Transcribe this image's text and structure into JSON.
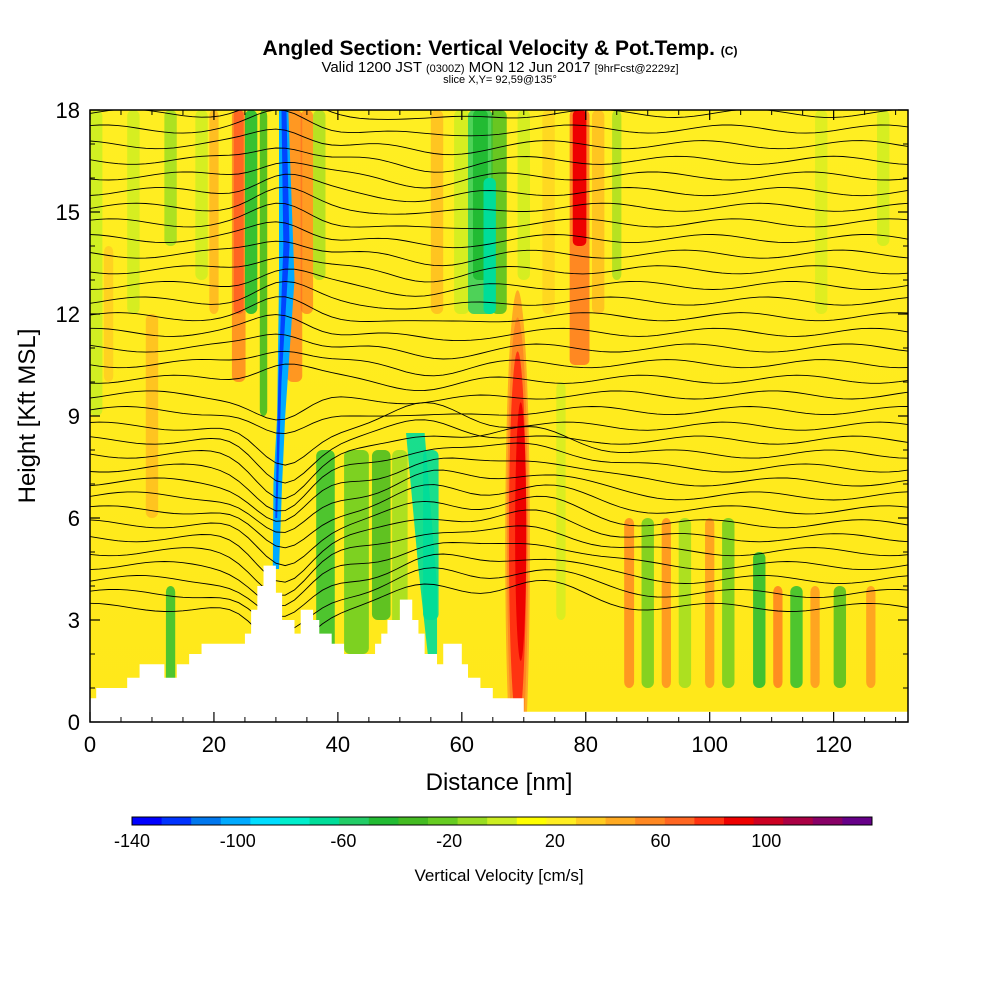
{
  "title_main": "Angled Section: Vertical Velocity & Pot.Temp.",
  "title_mark": "(C)",
  "subtitle_valid": "Valid 1200 JST",
  "subtitle_z": "(0300Z)",
  "subtitle_date": "MON 12 Jun 2017",
  "subtitle_fcst": "[9hrFcst@2229z]",
  "slice_label": "slice X,Y= 92,59@135°",
  "chart_data": {
    "type": "heatmap",
    "xlabel": "Distance [nm]",
    "ylabel": "Height [Kft MSL]",
    "xlim": [
      0,
      132
    ],
    "ylim": [
      0,
      18
    ],
    "x_ticks": [
      "0",
      "20",
      "40",
      "60",
      "80",
      "100",
      "120"
    ],
    "y_ticks": [
      "0",
      "3",
      "6",
      "9",
      "12",
      "15",
      "18"
    ],
    "colorbar": {
      "title": "Vertical Velocity [cm/s]",
      "tick_labels": [
        "-140",
        "-100",
        "-60",
        "-20",
        "20",
        "60",
        "100"
      ],
      "tick_values": [
        -140,
        -100,
        -60,
        -20,
        20,
        60,
        100
      ],
      "range": [
        -140,
        140
      ],
      "colors": [
        "#0000ff",
        "#0033ff",
        "#0077ee",
        "#00aaff",
        "#00ddff",
        "#00eecc",
        "#00dd99",
        "#22cc66",
        "#22bb33",
        "#44bb22",
        "#66cc22",
        "#99dd22",
        "#ccee22",
        "#ffff00",
        "#ffee22",
        "#ffcc22",
        "#ffaa22",
        "#ff8822",
        "#ff6622",
        "#ff3311",
        "#ee0000",
        "#cc0022",
        "#aa0044",
        "#880066",
        "#660088"
      ]
    },
    "terrain_peaks_nm": [
      31,
      52
    ],
    "updraft_cores_nm": [
      24,
      34,
      69,
      79
    ],
    "downdraft_cores_nm": [
      31,
      55,
      64
    ]
  }
}
